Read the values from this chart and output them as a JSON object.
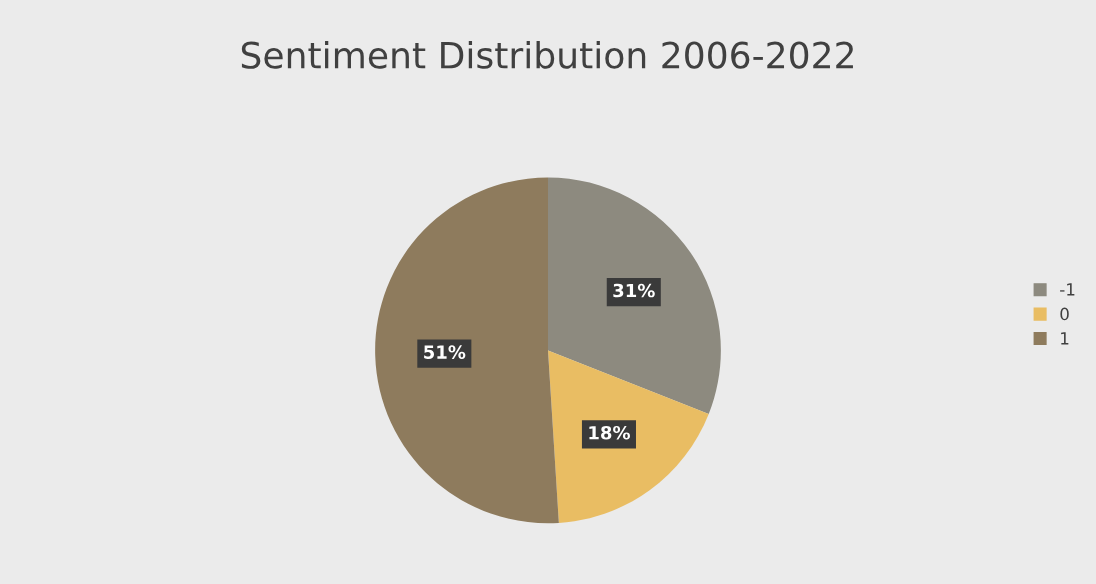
{
  "chart_data": {
    "type": "pie",
    "title": "Sentiment Distribution 2006-2022",
    "categories": [
      "-1",
      "0",
      "1"
    ],
    "values": [
      31,
      18,
      51
    ],
    "colors": [
      "#8d8a7f",
      "#e9bd63",
      "#8e7b5d"
    ],
    "value_labels": [
      "31%",
      "18%",
      "51%"
    ],
    "legend": "right"
  }
}
